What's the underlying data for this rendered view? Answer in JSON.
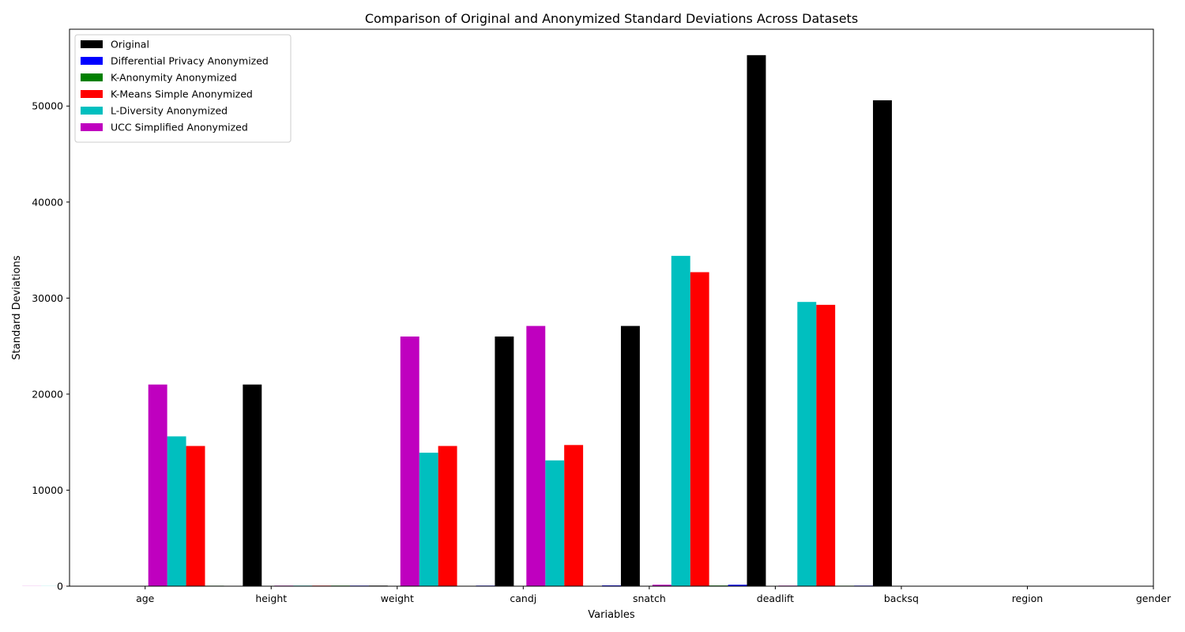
{
  "chart_data": {
    "type": "bar",
    "title": "Comparison of Original and Anonymized Standard Deviations Across Datasets",
    "xlabel": "Variables",
    "ylabel": "Standard Deviations",
    "categories": [
      "age",
      "height",
      "weight",
      "candj",
      "snatch",
      "deadlift",
      "backsq",
      "region",
      "gender"
    ],
    "ylim": [
      0,
      58000
    ],
    "yticks": [
      0,
      10000,
      20000,
      30000,
      40000,
      50000
    ],
    "grid": false,
    "legend_position": "top-left",
    "series": [
      {
        "name": "Original",
        "color": "#000000",
        "values": [
          10,
          21000,
          60,
          26000,
          27100,
          55300,
          50600,
          1,
          1
        ]
      },
      {
        "name": "Differential Privacy Anonymized",
        "color": "#0000ff",
        "values": [
          10,
          5,
          60,
          60,
          80,
          150,
          60,
          1,
          1
        ]
      },
      {
        "name": "K-Anonymity Anonymized",
        "color": "#008000",
        "values": [
          5,
          50,
          60,
          5,
          5,
          70,
          50,
          1,
          1
        ]
      },
      {
        "name": "K-Means Simple Anonymized",
        "color": "#ff0000",
        "values": [
          10,
          14600,
          60,
          14600,
          14700,
          32700,
          29300,
          1,
          1
        ]
      },
      {
        "name": "L-Diversity Anonymized",
        "color": "#00bfbf",
        "values": [
          10,
          15600,
          60,
          13900,
          13100,
          34400,
          29600,
          1,
          1
        ]
      },
      {
        "name": "UCC Simplified Anonymized",
        "color": "#bf00bf",
        "values": [
          10,
          21000,
          60,
          26000,
          27100,
          150,
          60,
          1,
          1
        ]
      }
    ]
  }
}
